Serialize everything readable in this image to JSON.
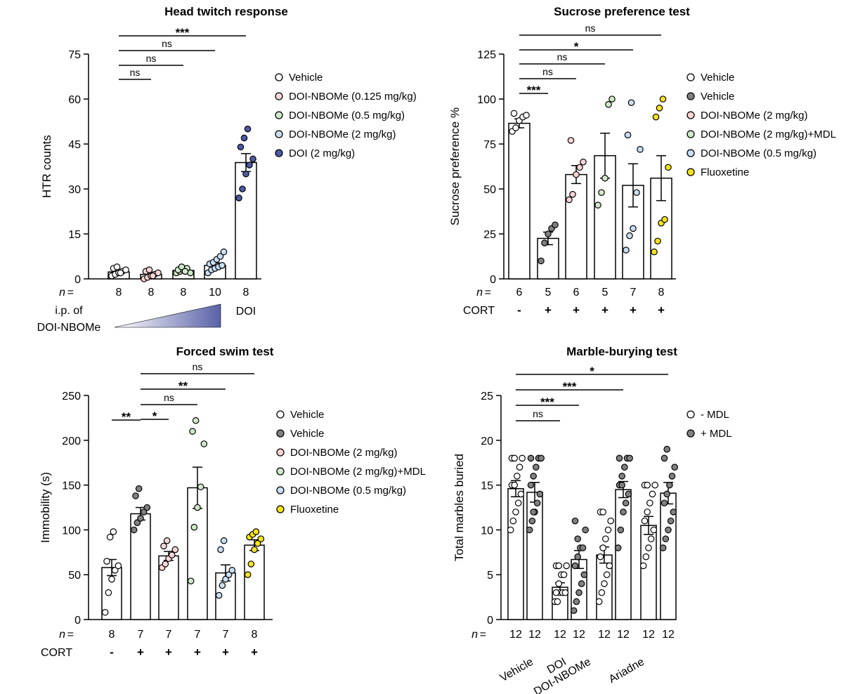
{
  "chart_data": [
    {
      "type": "bar",
      "title": "Head twitch response",
      "ylabel": "HTR counts",
      "ylim": [
        0,
        75
      ],
      "yticks": [
        0,
        15,
        30,
        45,
        60,
        75
      ],
      "n_label": "n =",
      "n": [
        "8",
        "8",
        "8",
        "10",
        "8"
      ],
      "bottom_labels": {
        "ip": "i.p. of",
        "drug": "DOI-NBOMe",
        "doi": "DOI"
      },
      "groups": [
        {
          "name": "Vehicle",
          "color": "#ffffff",
          "mean": 2.3,
          "sem": 0.5,
          "points": [
            1,
            1.5,
            2,
            2.5,
            3,
            3.5,
            4,
            2
          ]
        },
        {
          "name": "DOI-NBOMe (0.125 mg/kg)",
          "color": "#f9d5d5",
          "mean": 1.5,
          "sem": 0.5,
          "points": [
            0,
            0.5,
            1,
            1.5,
            2,
            2.5,
            3,
            1
          ]
        },
        {
          "name": "DOI-NBOMe (0.5 mg/kg)",
          "color": "#cfe9c8",
          "mean": 2.8,
          "sem": 0.4,
          "points": [
            2,
            2.5,
            3,
            3.5,
            2,
            3,
            4,
            2.5
          ]
        },
        {
          "name": "DOI-NBOMe (2 mg/kg)",
          "color": "#c9def4",
          "mean": 4.5,
          "sem": 0.8,
          "points": [
            2,
            3,
            3.5,
            4,
            4.5,
            5,
            5.5,
            6.5,
            7.5,
            9
          ]
        },
        {
          "name": "DOI (2 mg/kg)",
          "color": "#4c5aa5",
          "mean": 38.8,
          "sem": 3,
          "points": [
            27,
            30,
            35,
            38,
            40,
            44,
            47,
            50
          ]
        }
      ],
      "legend": [
        "Vehicle",
        "DOI-NBOMe (0.125 mg/kg)",
        "DOI-NBOMe (0.5 mg/kg)",
        "DOI-NBOMe (2 mg/kg)",
        "DOI (2 mg/kg)"
      ],
      "comparisons": [
        {
          "from": 0,
          "to": 1,
          "label": "ns"
        },
        {
          "from": 0,
          "to": 2,
          "label": "ns"
        },
        {
          "from": 0,
          "to": 3,
          "label": "ns"
        },
        {
          "from": 0,
          "to": 4,
          "label": "***"
        }
      ]
    },
    {
      "type": "bar",
      "title": "Sucrose preference test",
      "ylabel": "Sucrose preference %",
      "ylim": [
        0,
        125
      ],
      "yticks": [
        0,
        25,
        50,
        75,
        100,
        125
      ],
      "n_label": "n =",
      "n": [
        "6",
        "5",
        "6",
        "5",
        "7",
        "8"
      ],
      "cort_label": "CORT",
      "cort": [
        "-",
        "+",
        "+",
        "+",
        "+",
        "+"
      ],
      "groups": [
        {
          "name": "Vehicle",
          "color": "#ffffff",
          "mean": 86.5,
          "sem": 2.5,
          "points": [
            82,
            84,
            88,
            90,
            91,
            92
          ]
        },
        {
          "name": "Vehicle",
          "color": "#808080",
          "mean": 22.5,
          "sem": 3.5,
          "points": [
            10,
            20,
            25,
            28,
            30
          ]
        },
        {
          "name": "DOI-NBOMe (2 mg/kg)",
          "color": "#f9d5d5",
          "mean": 58,
          "sem": 5,
          "points": [
            44,
            47,
            58,
            62,
            65,
            77
          ]
        },
        {
          "name": "DOI-NBOMe (2 mg/kg)+MDL",
          "color": "#cfe9c8",
          "mean": 68.5,
          "sem": 12.5,
          "points": [
            41,
            48,
            56,
            97,
            100
          ]
        },
        {
          "name": "DOI-NBOMe (0.5 mg/kg)",
          "color": "#c9def4",
          "mean": 52,
          "sem": 12,
          "points": [
            16,
            24,
            28,
            48,
            72,
            80,
            98
          ]
        },
        {
          "name": "Fluoxetine",
          "color": "#f6e21e",
          "mean": 56,
          "sem": 12.5,
          "points": [
            15,
            21,
            31,
            33,
            62,
            90,
            95,
            100
          ]
        }
      ],
      "legend": [
        "Vehicle",
        "Vehicle",
        "DOI-NBOMe (2 mg/kg)",
        "DOI-NBOMe (2 mg/kg)+MDL",
        "DOI-NBOMe (0.5 mg/kg)",
        "Fluoxetine"
      ],
      "comparisons": [
        {
          "from": 0,
          "to": 1,
          "label": "***"
        },
        {
          "from": 0,
          "to": 2,
          "label": "ns"
        },
        {
          "from": 0,
          "to": 3,
          "label": "ns"
        },
        {
          "from": 0,
          "to": 4,
          "label": "*"
        },
        {
          "from": 0,
          "to": 5,
          "label": "ns"
        }
      ]
    },
    {
      "type": "bar",
      "title": "Forced swim test",
      "ylabel": "Immobility (s)",
      "ylim": [
        0,
        250
      ],
      "yticks": [
        0,
        50,
        100,
        150,
        200,
        250
      ],
      "n_label": "n =",
      "n": [
        "8",
        "7",
        "7",
        "7",
        "7",
        "8"
      ],
      "cort_label": "CORT",
      "cort": [
        "-",
        "+",
        "+",
        "+",
        "+",
        "+"
      ],
      "groups": [
        {
          "name": "Vehicle",
          "color": "#ffffff",
          "mean": 58,
          "sem": 9,
          "points": [
            8,
            30,
            45,
            55,
            60,
            65,
            92,
            98
          ]
        },
        {
          "name": "Vehicle",
          "color": "#808080",
          "mean": 118,
          "sem": 7,
          "points": [
            100,
            108,
            113,
            120,
            125,
            138,
            146
          ]
        },
        {
          "name": "DOI-NBOMe (2 mg/kg)",
          "color": "#f9d5d5",
          "mean": 71,
          "sem": 5,
          "points": [
            58,
            62,
            68,
            72,
            78,
            82,
            88
          ]
        },
        {
          "name": "DOI-NBOMe (2 mg/kg)+MDL",
          "color": "#cfe9c8",
          "mean": 147,
          "sem": 23,
          "points": [
            43,
            103,
            125,
            148,
            196,
            210,
            222
          ]
        },
        {
          "name": "DOI-NBOMe (0.5 mg/kg)",
          "color": "#c9def4",
          "mean": 52,
          "sem": 9,
          "points": [
            27,
            38,
            45,
            50,
            55,
            78,
            88
          ]
        },
        {
          "name": "Fluoxetine",
          "color": "#f6e21e",
          "mean": 83,
          "sem": 6,
          "points": [
            50,
            62,
            78,
            85,
            90,
            92,
            95,
            98
          ]
        }
      ],
      "legend": [
        "Vehicle",
        "Vehicle",
        "DOI-NBOMe (2 mg/kg)",
        "DOI-NBOMe (2 mg/kg)+MDL",
        "DOI-NBOMe (0.5 mg/kg)",
        "Fluoxetine"
      ],
      "comparisons": [
        {
          "from": 0,
          "to": 1,
          "label": "**"
        },
        {
          "from": 1,
          "to": 2,
          "label": "*"
        },
        {
          "from": 1,
          "to": 3,
          "label": "ns"
        },
        {
          "from": 1,
          "to": 4,
          "label": "**"
        },
        {
          "from": 1,
          "to": 5,
          "label": "ns"
        }
      ]
    },
    {
      "type": "bar",
      "title": "Marble-burying test",
      "ylabel": "Total marbles buried",
      "ylim": [
        0,
        25
      ],
      "yticks": [
        0,
        5,
        10,
        15,
        20,
        25
      ],
      "n_label": "n =",
      "n": [
        "12",
        "12",
        "12",
        "12",
        "12",
        "12",
        "12",
        "12"
      ],
      "categories": [
        "Vehicle",
        "DOI",
        "DOI-NBOMe",
        "Ariadne"
      ],
      "series": [
        {
          "name": "- MDL",
          "color": "#ffffff",
          "values": [
            14.6,
            3.6,
            7.2,
            10.5
          ],
          "sem": [
            0.9,
            0.5,
            0.9,
            1.0
          ],
          "points": [
            [
              10,
              11,
              12,
              13,
              14,
              15,
              15,
              16,
              17,
              18,
              18,
              18
            ],
            [
              2,
              2,
              3,
              3,
              3,
              3,
              4,
              5,
              5,
              6,
              6,
              6
            ],
            [
              2,
              3,
              4,
              5,
              6,
              7,
              8,
              9,
              10,
              11,
              12,
              12
            ],
            [
              6,
              7,
              8,
              9,
              10,
              11,
              12,
              13,
              14,
              15,
              15,
              15
            ]
          ]
        },
        {
          "name": "+ MDL",
          "color": "#808080",
          "values": [
            14.2,
            6.7,
            14.5,
            14.1
          ],
          "sem": [
            1.1,
            1.0,
            0.9,
            1.2
          ],
          "points": [
            [
              10,
              11,
              12,
              13,
              14,
              15,
              16,
              17,
              18,
              18,
              18,
              12
            ],
            [
              1,
              2,
              3,
              4,
              5,
              6,
              7,
              8,
              8,
              10,
              11,
              9
            ],
            [
              8,
              10,
              12,
              13,
              14,
              15,
              16,
              17,
              18,
              18,
              18,
              15
            ],
            [
              8,
              9,
              10,
              11,
              12,
              13,
              14,
              15,
              16,
              17,
              18,
              19
            ]
          ]
        }
      ],
      "legend": [
        "-  MDL",
        "+ MDL"
      ],
      "comparisons": [
        {
          "from": 0,
          "to": 2,
          "label": "ns"
        },
        {
          "from": 0,
          "to": 3,
          "label": "***"
        },
        {
          "from": 0,
          "to": 5,
          "label": "***"
        },
        {
          "from": 0,
          "to": 7,
          "label": "*"
        }
      ]
    }
  ]
}
